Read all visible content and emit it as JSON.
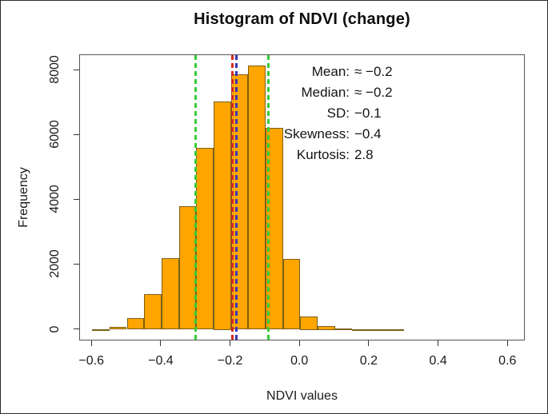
{
  "figure": {
    "background": "#ffffff",
    "border_color": "#2b2b2b",
    "axis_color": "#333333",
    "text_color": "#1a1a1a"
  },
  "chart_data": {
    "type": "bar",
    "subtype": "histogram",
    "title": "Histogram of NDVI (change)",
    "xlabel": "NDVI values",
    "ylabel": "Frequency",
    "xlim": [
      -0.635,
      0.65
    ],
    "ylim": [
      0,
      8000
    ],
    "grid": false,
    "bar_fill": "#FFA500",
    "bar_border": "#7a6018",
    "bin_start": -0.6,
    "bin_width": 0.05,
    "counts": [
      20,
      80,
      360,
      1100,
      2200,
      3800,
      5600,
      7050,
      7880,
      8150,
      6230,
      2180,
      420,
      110,
      30,
      15,
      8,
      12
    ],
    "x_ticks": [
      {
        "v": -0.6,
        "label": "−0.6"
      },
      {
        "v": -0.4,
        "label": "−0.4"
      },
      {
        "v": -0.2,
        "label": "−0.2"
      },
      {
        "v": 0.0,
        "label": "0.0"
      },
      {
        "v": 0.2,
        "label": "0.2"
      },
      {
        "v": 0.4,
        "label": "0.4"
      },
      {
        "v": 0.6,
        "label": "0.6"
      }
    ],
    "y_ticks": [
      {
        "v": 0,
        "label": "0"
      },
      {
        "v": 2000,
        "label": "2000"
      },
      {
        "v": 4000,
        "label": "4000"
      },
      {
        "v": 6000,
        "label": "6000"
      },
      {
        "v": 8000,
        "label": "8000"
      }
    ],
    "vlines": [
      {
        "x": -0.301,
        "color": "#35cc35",
        "style": "dashed",
        "role": "mean-minus-sd"
      },
      {
        "x": -0.195,
        "color": "#d4291e",
        "style": "dashed",
        "role": "mean"
      },
      {
        "x": -0.183,
        "color": "#3a35b5",
        "style": "dashed",
        "role": "median"
      },
      {
        "x": -0.091,
        "color": "#35cc35",
        "style": "dashed",
        "role": "mean-plus-sd"
      }
    ]
  },
  "stats": {
    "rows": [
      {
        "label": "Mean:",
        "value": "≈ −0.2"
      },
      {
        "label": "Median:",
        "value": "≈ −0.2"
      },
      {
        "label": "SD:",
        "value": "−0.1"
      },
      {
        "label": "Skewness:",
        "value": "−0.4"
      },
      {
        "label": "Kurtosis:",
        "value": "2.8"
      }
    ]
  }
}
